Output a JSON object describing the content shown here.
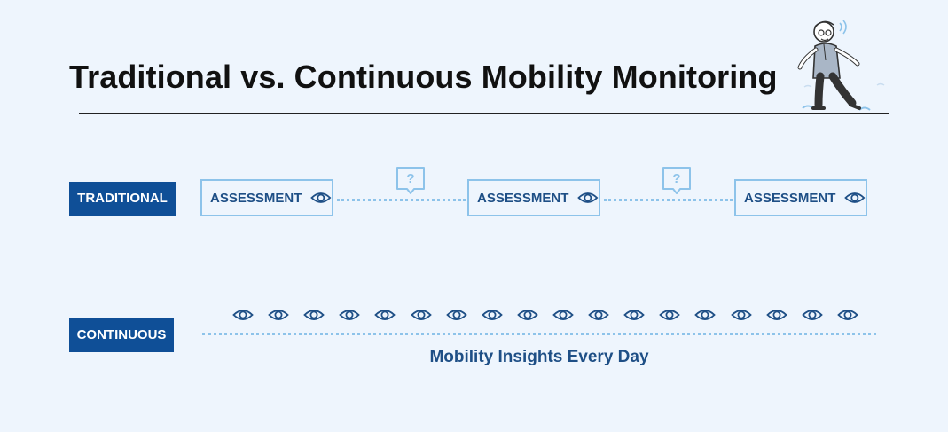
{
  "header": {
    "title": "Traditional vs. Continuous Mobility Monitoring",
    "illustration_icon": "elderly-man-walking-illustration"
  },
  "rows": {
    "traditional": {
      "label": "TRADITIONAL",
      "assessments": [
        {
          "label": "ASSESSMENT",
          "icon": "eye-icon"
        },
        {
          "label": "ASSESSMENT",
          "icon": "eye-icon"
        },
        {
          "label": "ASSESSMENT",
          "icon": "eye-icon"
        }
      ],
      "gap_markers": [
        {
          "text": "?",
          "icon": "question-bubble-icon"
        },
        {
          "text": "?",
          "icon": "question-bubble-icon"
        }
      ]
    },
    "continuous": {
      "label": "CONTINUOUS",
      "observation_count": 18,
      "observation_icon": "eye-icon",
      "caption": "Mobility Insights Every Day"
    }
  },
  "colors": {
    "background": "#eef5fd",
    "label_fill": "#0f4f97",
    "accent_light": "#8dc3ea",
    "text_dark_blue": "#1e4f86",
    "title": "#111111"
  }
}
